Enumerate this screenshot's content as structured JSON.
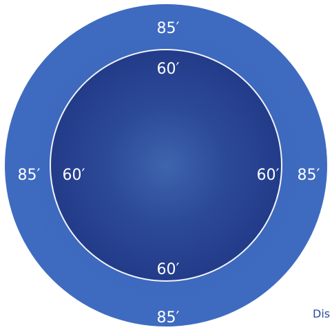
{
  "diagram": {
    "outer_ring": {
      "labels": {
        "top": "85′",
        "left": "85′",
        "right": "85′",
        "bottom": "85′"
      }
    },
    "inner_circle": {
      "labels": {
        "top": "60′",
        "left": "60′",
        "right": "60′",
        "bottom": "60′"
      }
    },
    "partial_text": "Dis",
    "colors": {
      "outer_ring": "#3e6bc0",
      "outer_ring_edge": "#6c9bdc",
      "inner_circle": "#233c8a",
      "inner_border": "#f2f4f8",
      "label_text": "#ffffff",
      "partial_text": "#2a4aa0"
    }
  }
}
